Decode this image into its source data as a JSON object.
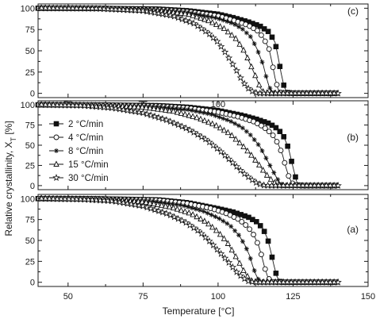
{
  "chart_data": {
    "type": "line",
    "ylabel": "Relative crystallinity, X",
    "ylabel_sub": "T",
    "ylabel_unit": " [%]",
    "xlabel": "Temperature [°C]",
    "xlim": [
      40,
      150
    ],
    "ylim": [
      -5,
      105
    ],
    "x_ticks_major": [
      50,
      75,
      100,
      125,
      150
    ],
    "y_ticks_major": [
      0,
      25,
      50,
      75,
      100
    ],
    "legend": {
      "panel": "b",
      "placement": "left",
      "entries": [
        {
          "label": "2 °C/min",
          "marker": "filled-square"
        },
        {
          "label": "4 °C/min",
          "marker": "open-circle"
        },
        {
          "label": "8 °C/min",
          "marker": "asterisk"
        },
        {
          "label": "15 °C/min",
          "marker": "open-triangle"
        },
        {
          "label": "30 °C/min",
          "marker": "open-star"
        }
      ]
    },
    "panels": [
      {
        "id": "c",
        "label": "(c)",
        "series": [
          {
            "marker": "filled-square",
            "points": [
              [
                40,
                100
              ],
              [
                60,
                99.8
              ],
              [
                80,
                99
              ],
              [
                90,
                97
              ],
              [
                100,
                93
              ],
              [
                105,
                89
              ],
              [
                110,
                84
              ],
              [
                114,
                79
              ],
              [
                117,
                72
              ],
              [
                119,
                60
              ],
              [
                120,
                43
              ],
              [
                121,
                24
              ],
              [
                122,
                8
              ],
              [
                123,
                1
              ],
              [
                125,
                0
              ],
              [
                140,
                0
              ]
            ]
          },
          {
            "marker": "open-circle",
            "points": [
              [
                40,
                100
              ],
              [
                60,
                99.8
              ],
              [
                80,
                98.5
              ],
              [
                90,
                96
              ],
              [
                100,
                91
              ],
              [
                105,
                86
              ],
              [
                110,
                80
              ],
              [
                113,
                74
              ],
              [
                115,
                66
              ],
              [
                117,
                52
              ],
              [
                118,
                36
              ],
              [
                119,
                18
              ],
              [
                120,
                5
              ],
              [
                121,
                0.5
              ],
              [
                123,
                0
              ],
              [
                140,
                0
              ]
            ]
          },
          {
            "marker": "asterisk",
            "points": [
              [
                40,
                100
              ],
              [
                60,
                99.7
              ],
              [
                80,
                98
              ],
              [
                90,
                95
              ],
              [
                100,
                88
              ],
              [
                105,
                82
              ],
              [
                108,
                76
              ],
              [
                111,
                66
              ],
              [
                113,
                52
              ],
              [
                115,
                34
              ],
              [
                116,
                20
              ],
              [
                117,
                8
              ],
              [
                118,
                1.5
              ],
              [
                120,
                0
              ],
              [
                140,
                0
              ]
            ]
          },
          {
            "marker": "open-triangle",
            "points": [
              [
                40,
                100
              ],
              [
                60,
                99.6
              ],
              [
                80,
                97
              ],
              [
                90,
                93
              ],
              [
                97,
                85
              ],
              [
                102,
                76
              ],
              [
                106,
                64
              ],
              [
                109,
                48
              ],
              [
                111,
                32
              ],
              [
                113,
                16
              ],
              [
                114,
                7
              ],
              [
                115,
                2
              ],
              [
                117,
                0
              ],
              [
                140,
                0
              ]
            ]
          },
          {
            "marker": "open-star",
            "points": [
              [
                40,
                100
              ],
              [
                60,
                99.5
              ],
              [
                75,
                97
              ],
              [
                85,
                91
              ],
              [
                92,
                82
              ],
              [
                97,
                70
              ],
              [
                100,
                60
              ],
              [
                103,
                45
              ],
              [
                106,
                28
              ],
              [
                108,
                15
              ],
              [
                110,
                6
              ],
              [
                112,
                1
              ],
              [
                114,
                0
              ],
              [
                140,
                0
              ]
            ]
          }
        ]
      },
      {
        "id": "b",
        "label": "(b)",
        "series": [
          {
            "marker": "filled-square",
            "points": [
              [
                40,
                100
              ],
              [
                60,
                99.8
              ],
              [
                80,
                99
              ],
              [
                90,
                97
              ],
              [
                100,
                93
              ],
              [
                108,
                87
              ],
              [
                113,
                82
              ],
              [
                117,
                77
              ],
              [
                120,
                70
              ],
              [
                122,
                60
              ],
              [
                123.5,
                46
              ],
              [
                124.5,
                30
              ],
              [
                125.5,
                15
              ],
              [
                126.2,
                5
              ],
              [
                127,
                0.5
              ],
              [
                128,
                0
              ],
              [
                140,
                0
              ]
            ]
          },
          {
            "marker": "open-circle",
            "points": [
              [
                40,
                100
              ],
              [
                60,
                99.7
              ],
              [
                80,
                98.5
              ],
              [
                90,
                96
              ],
              [
                100,
                91
              ],
              [
                107,
                85
              ],
              [
                112,
                79
              ],
              [
                115,
                73
              ],
              [
                118,
                64
              ],
              [
                120,
                52
              ],
              [
                121.5,
                38
              ],
              [
                122.5,
                24
              ],
              [
                123.5,
                12
              ],
              [
                124.5,
                4
              ],
              [
                125.5,
                0.5
              ],
              [
                127,
                0
              ],
              [
                140,
                0
              ]
            ]
          },
          {
            "marker": "asterisk",
            "points": [
              [
                40,
                100
              ],
              [
                60,
                99.6
              ],
              [
                80,
                97.5
              ],
              [
                90,
                94
              ],
              [
                98,
                88
              ],
              [
                104,
                80
              ],
              [
                108,
                72
              ],
              [
                111,
                62
              ],
              [
                114,
                48
              ],
              [
                116,
                34
              ],
              [
                118,
                20
              ],
              [
                119.5,
                10
              ],
              [
                120.5,
                4
              ],
              [
                121.5,
                1
              ],
              [
                123,
                0
              ],
              [
                140,
                0
              ]
            ]
          },
          {
            "marker": "open-triangle",
            "points": [
              [
                40,
                100
              ],
              [
                60,
                99.4
              ],
              [
                75,
                97
              ],
              [
                85,
                92
              ],
              [
                93,
                84
              ],
              [
                99,
                75
              ],
              [
                104,
                64
              ],
              [
                108,
                50
              ],
              [
                111,
                38
              ],
              [
                114,
                24
              ],
              [
                116,
                14
              ],
              [
                118,
                6
              ],
              [
                119.5,
                2
              ],
              [
                121,
                0
              ],
              [
                140,
                0
              ]
            ]
          },
          {
            "marker": "open-star",
            "points": [
              [
                40,
                100
              ],
              [
                55,
                99
              ],
              [
                65,
                96
              ],
              [
                75,
                90
              ],
              [
                83,
                81
              ],
              [
                90,
                70
              ],
              [
                96,
                57
              ],
              [
                101,
                42
              ],
              [
                105,
                28
              ],
              [
                108,
                17
              ],
              [
                111,
                8
              ],
              [
                113,
                3
              ],
              [
                115,
                0.5
              ],
              [
                117,
                0
              ],
              [
                140,
                0
              ]
            ]
          }
        ]
      },
      {
        "id": "a",
        "label": "(a)",
        "series": [
          {
            "marker": "filled-square",
            "points": [
              [
                40,
                100
              ],
              [
                60,
                99.8
              ],
              [
                80,
                98.5
              ],
              [
                90,
                95
              ],
              [
                100,
                88
              ],
              [
                105,
                84
              ],
              [
                110,
                78
              ],
              [
                113,
                72
              ],
              [
                115,
                64
              ],
              [
                116.5,
                52
              ],
              [
                117.5,
                38
              ],
              [
                118.5,
                22
              ],
              [
                119.5,
                8
              ],
              [
                120.5,
                1
              ],
              [
                122,
                0
              ],
              [
                140,
                0
              ]
            ]
          },
          {
            "marker": "open-circle",
            "points": [
              [
                40,
                100
              ],
              [
                60,
                99.7
              ],
              [
                80,
                98
              ],
              [
                90,
                94
              ],
              [
                98,
                88
              ],
              [
                103,
                82
              ],
              [
                107,
                75
              ],
              [
                110,
                66
              ],
              [
                112,
                56
              ],
              [
                113.5,
                44
              ],
              [
                114.5,
                32
              ],
              [
                115.5,
                18
              ],
              [
                116.5,
                7
              ],
              [
                117.5,
                1
              ],
              [
                119,
                0
              ],
              [
                140,
                0
              ]
            ]
          },
          {
            "marker": "asterisk",
            "points": [
              [
                40,
                100
              ],
              [
                60,
                99.6
              ],
              [
                78,
                97
              ],
              [
                88,
                92
              ],
              [
                95,
                85
              ],
              [
                100,
                77
              ],
              [
                104,
                68
              ],
              [
                107,
                56
              ],
              [
                109,
                44
              ],
              [
                110.5,
                32
              ],
              [
                111.5,
                20
              ],
              [
                112.5,
                10
              ],
              [
                113.5,
                3
              ],
              [
                115,
                0
              ],
              [
                140,
                0
              ]
            ]
          },
          {
            "marker": "open-triangle",
            "points": [
              [
                40,
                100
              ],
              [
                60,
                99.4
              ],
              [
                75,
                96
              ],
              [
                84,
                90
              ],
              [
                91,
                82
              ],
              [
                96,
                72
              ],
              [
                100,
                60
              ],
              [
                103,
                48
              ],
              [
                105,
                36
              ],
              [
                107,
                24
              ],
              [
                108.5,
                14
              ],
              [
                110,
                6
              ],
              [
                111,
                2
              ],
              [
                113,
                0
              ],
              [
                140,
                0
              ]
            ]
          },
          {
            "marker": "open-star",
            "points": [
              [
                40,
                100
              ],
              [
                55,
                99
              ],
              [
                65,
                97
              ],
              [
                75,
                91
              ],
              [
                83,
                82
              ],
              [
                89,
                72
              ],
              [
                94,
                60
              ],
              [
                98,
                46
              ],
              [
                101,
                34
              ],
              [
                104,
                22
              ],
              [
                106,
                13
              ],
              [
                108,
                6
              ],
              [
                110,
                1.5
              ],
              [
                112,
                0
              ],
              [
                140,
                0
              ]
            ]
          }
        ]
      }
    ]
  }
}
